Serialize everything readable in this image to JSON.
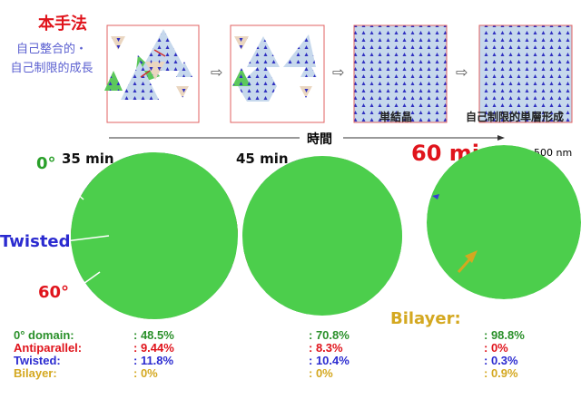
{
  "header": {
    "method": "本手法",
    "subtitle_line1": "自己整合的・",
    "subtitle_line2": "自己制限的成長"
  },
  "schematic": {
    "arrow_glyph": "⇨",
    "caption_single_crystal": "単結晶",
    "caption_self_limited": "自己制限的単層形成",
    "time_label": "時間"
  },
  "micrographs": [
    {
      "time": "35 min"
    },
    {
      "time": "45 min"
    },
    {
      "time": "60 min"
    }
  ],
  "scale_bar": "500 nm",
  "annotations": {
    "zero": "0°",
    "twisted": "Twisted",
    "sixty": "60°",
    "bilayer": "Bilayer:"
  },
  "stats": {
    "labels": [
      "0° domain:",
      "Antiparallel:",
      "Twisted:",
      "Bilayer:"
    ],
    "t35": [
      ": 48.5%",
      ": 9.44%",
      ": 11.8%",
      ": 0%"
    ],
    "t45": [
      ": 70.8%",
      ": 8.3%",
      ": 10.4%",
      ": 0%"
    ],
    "t60": [
      ": 98.8%",
      ": 0%",
      ": 0.3%",
      ": 0.9%"
    ]
  },
  "colors": {
    "green": "#4cce4c",
    "red": "#e03a3a",
    "blue": "#3b3bd6",
    "gold": "#d4a820",
    "gray": "#c8c8c8"
  }
}
